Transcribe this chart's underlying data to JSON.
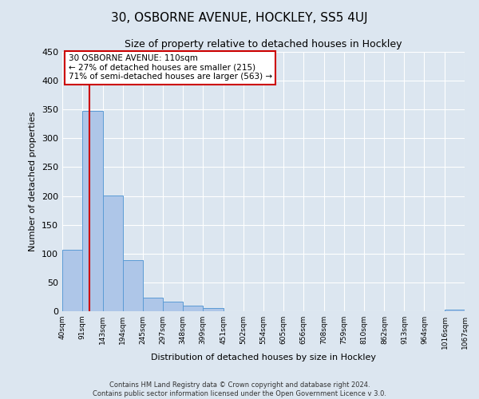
{
  "title": "30, OSBORNE AVENUE, HOCKLEY, SS5 4UJ",
  "subtitle": "Size of property relative to detached houses in Hockley",
  "xlabel": "Distribution of detached houses by size in Hockley",
  "ylabel": "Number of detached properties",
  "bar_edges": [
    40,
    91,
    143,
    194,
    245,
    297,
    348,
    399,
    451,
    502,
    554,
    605,
    656,
    708,
    759,
    810,
    862,
    913,
    964,
    1016,
    1067
  ],
  "bar_values": [
    107,
    348,
    201,
    89,
    24,
    17,
    10,
    5,
    0,
    0,
    0,
    0,
    0,
    0,
    0,
    0,
    0,
    0,
    0,
    3
  ],
  "bar_color": "#aec6e8",
  "bar_edge_color": "#5b9bd5",
  "property_line_x": 110,
  "property_line_color": "#cc0000",
  "ylim": [
    0,
    450
  ],
  "yticks": [
    0,
    50,
    100,
    150,
    200,
    250,
    300,
    350,
    400,
    450
  ],
  "annotation_line1": "30 OSBORNE AVENUE: 110sqm",
  "annotation_line2": "← 27% of detached houses are smaller (215)",
  "annotation_line3": "71% of semi-detached houses are larger (563) →",
  "annotation_box_color": "#ffffff",
  "annotation_box_edge": "#cc0000",
  "footer_line1": "Contains HM Land Registry data © Crown copyright and database right 2024.",
  "footer_line2": "Contains public sector information licensed under the Open Government Licence v 3.0.",
  "background_color": "#dce6f0",
  "plot_background": "#dce6f0"
}
